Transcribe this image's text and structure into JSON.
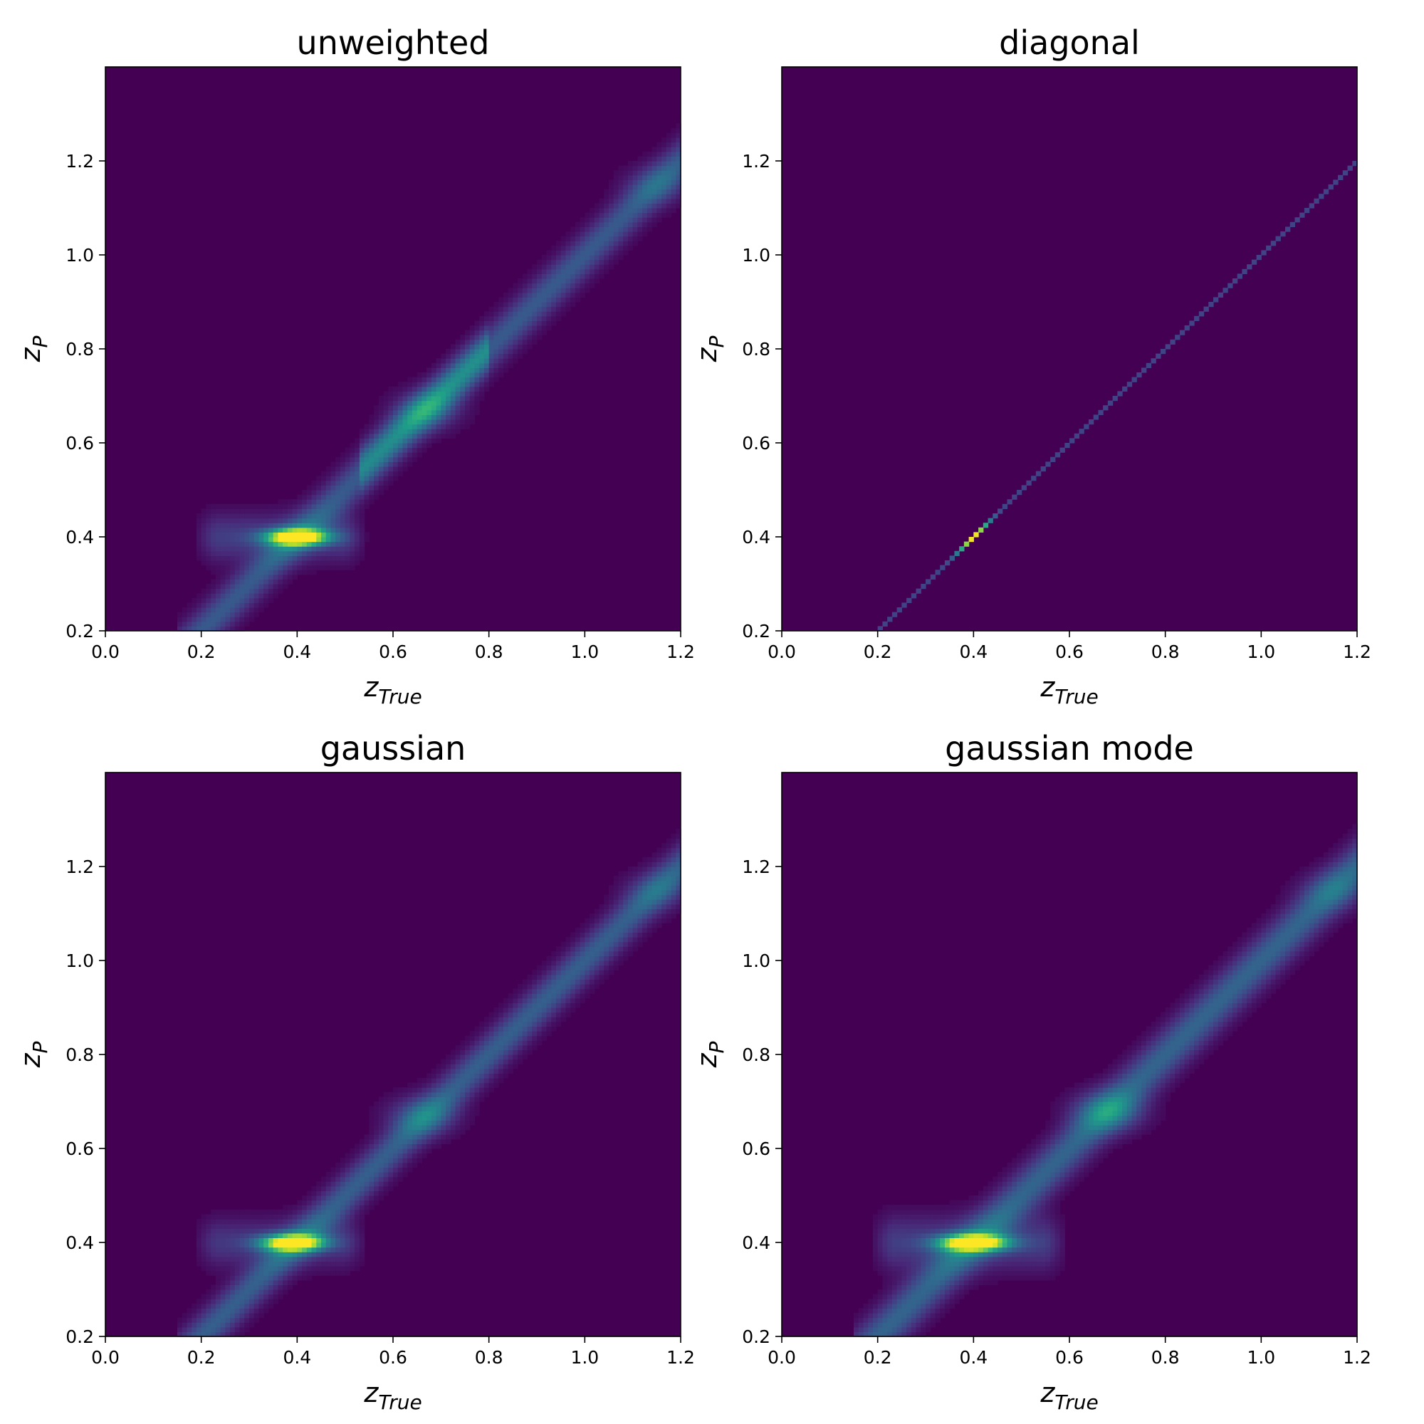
{
  "chart_data": [
    {
      "type": "heatmap",
      "title": "unweighted",
      "xlabel": "z_True",
      "ylabel": "z_P",
      "xlim": [
        0.0,
        1.2
      ],
      "ylim": [
        0.2,
        1.4
      ],
      "xticks": [
        0.0,
        0.2,
        0.4,
        0.6,
        0.8,
        1.0,
        1.2
      ],
      "yticks": [
        0.2,
        0.4,
        0.6,
        0.8,
        1.0,
        1.2
      ],
      "colormap": "viridis",
      "grid": false,
      "features": [
        {
          "kind": "peak",
          "x": 0.4,
          "y": 0.4,
          "sx": 0.045,
          "sy": 0.012,
          "amp": 1.0
        },
        {
          "kind": "ridge",
          "x0": 0.15,
          "y0": 0.15,
          "x1": 1.2,
          "y1": 1.2,
          "width": 0.035,
          "amp": 0.28
        },
        {
          "kind": "ridge",
          "x0": 0.53,
          "y0": 0.55,
          "x1": 0.8,
          "y1": 0.8,
          "width": 0.03,
          "amp": 0.22
        },
        {
          "kind": "band",
          "x0": 0.18,
          "x1": 0.55,
          "y": 0.4,
          "sy": 0.035,
          "amp": 0.18
        },
        {
          "kind": "peak",
          "x": 0.67,
          "y": 0.67,
          "sx": 0.05,
          "sy": 0.03,
          "amp": 0.18
        },
        {
          "kind": "peak",
          "x": 1.15,
          "y": 1.15,
          "sx": 0.05,
          "sy": 0.03,
          "amp": 0.12
        }
      ]
    },
    {
      "type": "heatmap",
      "title": "diagonal",
      "xlabel": "z_True",
      "ylabel": "z_P",
      "xlim": [
        0.0,
        1.2
      ],
      "ylim": [
        0.2,
        1.4
      ],
      "xticks": [
        0.0,
        0.2,
        0.4,
        0.6,
        0.8,
        1.0,
        1.2
      ],
      "yticks": [
        0.2,
        0.4,
        0.6,
        0.8,
        1.0,
        1.2
      ],
      "colormap": "viridis",
      "grid": false,
      "features": [
        {
          "kind": "diagonal-line",
          "x0": 0.2,
          "x1": 1.2,
          "peak_x": 0.4,
          "peak_amp": 1.0,
          "base_amp": 0.2
        }
      ]
    },
    {
      "type": "heatmap",
      "title": "gaussian",
      "xlabel": "z_True",
      "ylabel": "z_P",
      "xlim": [
        0.0,
        1.2
      ],
      "ylim": [
        0.2,
        1.4
      ],
      "xticks": [
        0.0,
        0.2,
        0.4,
        0.6,
        0.8,
        1.0,
        1.2
      ],
      "yticks": [
        0.2,
        0.4,
        0.6,
        0.8,
        1.0,
        1.2
      ],
      "colormap": "viridis",
      "grid": false,
      "features": [
        {
          "kind": "peak",
          "x": 0.39,
          "y": 0.4,
          "sx": 0.045,
          "sy": 0.012,
          "amp": 1.0
        },
        {
          "kind": "ridge",
          "x0": 0.15,
          "y0": 0.15,
          "x1": 1.2,
          "y1": 1.2,
          "width": 0.035,
          "amp": 0.3
        },
        {
          "kind": "band",
          "x0": 0.18,
          "x1": 0.55,
          "y": 0.4,
          "sy": 0.035,
          "amp": 0.16
        },
        {
          "kind": "peak",
          "x": 0.66,
          "y": 0.67,
          "sx": 0.05,
          "sy": 0.03,
          "amp": 0.22
        },
        {
          "kind": "peak",
          "x": 1.15,
          "y": 1.15,
          "sx": 0.05,
          "sy": 0.03,
          "amp": 0.12
        }
      ]
    },
    {
      "type": "heatmap",
      "title": "gaussian mode",
      "xlabel": "z_True",
      "ylabel": "z_P",
      "xlim": [
        0.0,
        1.2
      ],
      "ylim": [
        0.2,
        1.4
      ],
      "xticks": [
        0.0,
        0.2,
        0.4,
        0.6,
        0.8,
        1.0,
        1.2
      ],
      "yticks": [
        0.2,
        0.4,
        0.6,
        0.8,
        1.0,
        1.2
      ],
      "colormap": "viridis",
      "grid": false,
      "features": [
        {
          "kind": "peak",
          "x": 0.4,
          "y": 0.4,
          "sx": 0.05,
          "sy": 0.012,
          "amp": 1.0
        },
        {
          "kind": "ridge",
          "x0": 0.15,
          "y0": 0.15,
          "x1": 1.2,
          "y1": 1.2,
          "width": 0.04,
          "amp": 0.32
        },
        {
          "kind": "band",
          "x0": 0.18,
          "x1": 0.6,
          "y": 0.4,
          "sy": 0.04,
          "amp": 0.18
        },
        {
          "kind": "peak",
          "x": 0.68,
          "y": 0.68,
          "sx": 0.05,
          "sy": 0.03,
          "amp": 0.3
        },
        {
          "kind": "peak",
          "x": 1.15,
          "y": 1.15,
          "sx": 0.05,
          "sy": 0.03,
          "amp": 0.12
        }
      ]
    }
  ]
}
